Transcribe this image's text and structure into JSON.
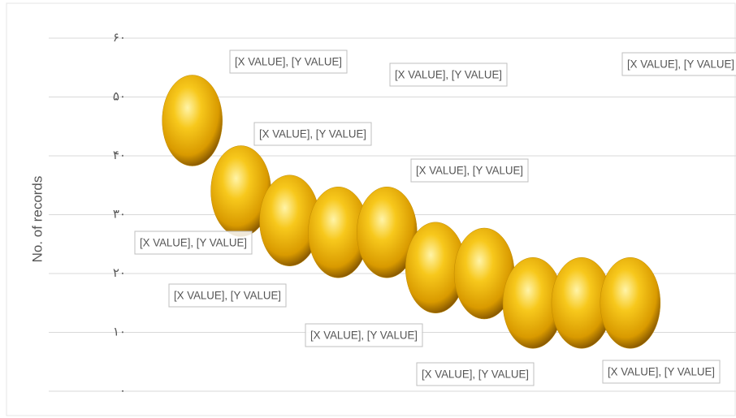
{
  "chart_data": {
    "type": "bubble",
    "y_label": "No. of records",
    "x": [
      1,
      2,
      3,
      4,
      5,
      6,
      7,
      8,
      9,
      10
    ],
    "values": [
      46,
      34,
      29,
      27,
      27,
      21,
      20,
      15,
      15,
      15
    ],
    "data_labels": [
      "[X VALUE], [Y VALUE]",
      "[X VALUE], [Y VALUE]",
      "[X VALUE], [Y VALUE]",
      "[X VALUE], [Y VALUE]",
      "[X VALUE], [Y VALUE]",
      "[X VALUE], [Y VALUE]",
      "[X VALUE], [Y VALUE]",
      "[X VALUE], [Y VALUE]",
      "[X VALUE], [Y VALUE]",
      "[X VALUE], [Y VALUE]"
    ],
    "color": "#f2b705",
    "xlim": [
      -2,
      12
    ],
    "ylim": [
      0,
      60
    ],
    "yticks": [
      {
        "value": 0,
        "label": "۰"
      },
      {
        "value": 10,
        "label": "۱۰"
      },
      {
        "value": 20,
        "label": "۲۰"
      },
      {
        "value": 30,
        "label": "۳۰"
      },
      {
        "value": 40,
        "label": "۴۰"
      },
      {
        "value": 50,
        "label": "۵۰"
      },
      {
        "value": 60,
        "label": "۶۰"
      }
    ],
    "grid": true
  }
}
